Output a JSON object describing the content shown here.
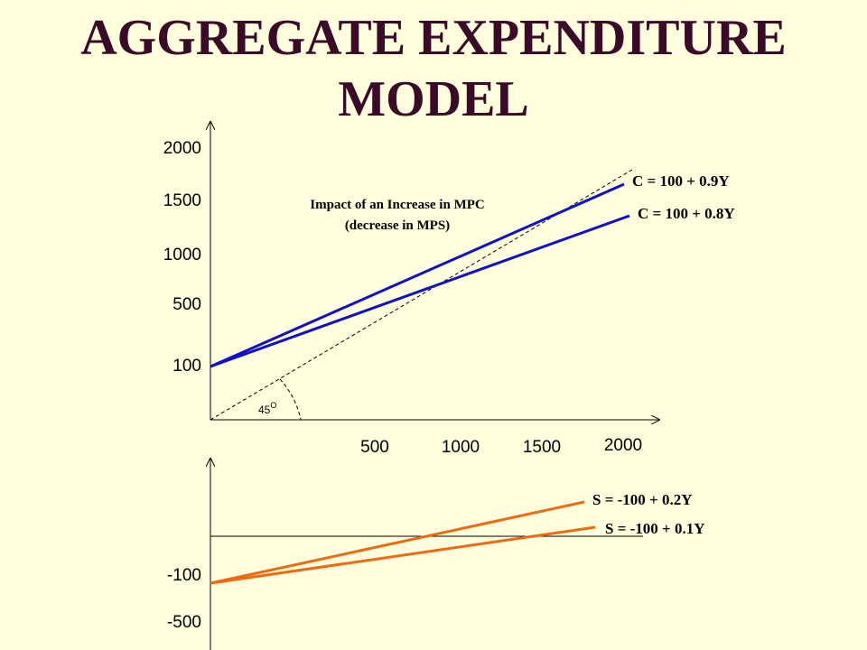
{
  "title": {
    "line1": "AGGREGATE EXPENDITURE",
    "line2": "MODEL"
  },
  "top_chart": {
    "y_ticks": [
      "2000",
      "1500",
      "1000",
      "500",
      "100"
    ],
    "x_ticks": [
      "500",
      "1000",
      "1500",
      "2000"
    ],
    "annotation_line1": "Impact of an Increase in MPC",
    "annotation_line2": "(decrease in MPS)",
    "angle_label": "45",
    "angle_superscript": "O",
    "consumption_high_label": "C = 100 + 0.9Y",
    "consumption_low_label": "C = 100 + 0.8Y"
  },
  "bottom_chart": {
    "y_ticks": [
      "-100",
      "-500"
    ],
    "saving_high_label": "S = -100 + 0.2Y",
    "saving_low_label": "S = -100 + 0.1Y"
  },
  "colors": {
    "title": "#3a0a28",
    "consumption": "#1010cc",
    "saving": "#ee6a10",
    "background": "#ffffdd"
  }
}
